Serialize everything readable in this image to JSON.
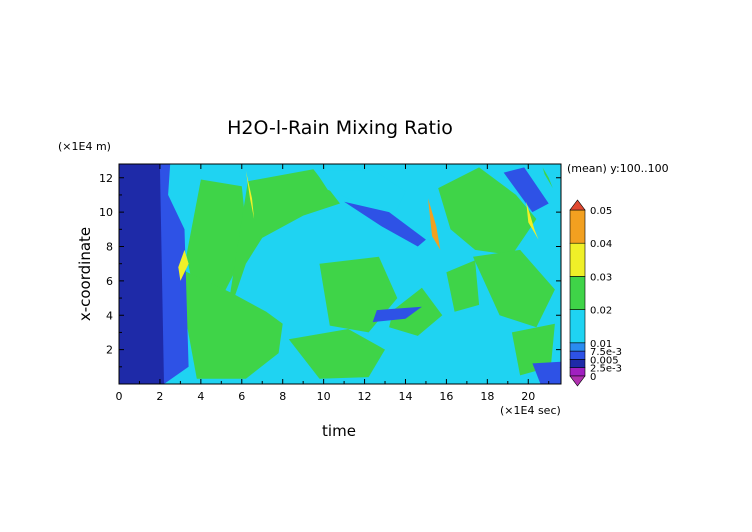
{
  "chart_data": {
    "type": "heatmap",
    "title": "H2O-l-Rain Mixing Ratio",
    "xlabel": "time",
    "ylabel": "x-coordinate",
    "x_unit": "(×1E4 sec)",
    "y_unit": "(×1E4 m)",
    "annotation": "(mean) y:100..100",
    "xlim": [
      0,
      21.6
    ],
    "ylim": [
      0,
      12.8
    ],
    "x_ticks": [
      "0",
      "2",
      "4",
      "6",
      "8",
      "10",
      "12",
      "14",
      "16",
      "18",
      "20"
    ],
    "y_ticks": [
      "2",
      "4",
      "6",
      "8",
      "10",
      "12"
    ],
    "colorbar": {
      "levels": [
        0,
        0.0025,
        0.005,
        0.0075,
        0.01,
        0.02,
        0.03,
        0.04,
        0.05
      ],
      "labels": [
        "0",
        "2.5e-3",
        "0.005",
        "7.5e-3",
        "0.01",
        "0.02",
        "0.03",
        "0.04",
        "0.05"
      ],
      "colors": [
        "#a020c0",
        "#1e2aa8",
        "#2e52e6",
        "#2a8cf0",
        "#1fd3f2",
        "#3fd448",
        "#f0f028",
        "#f2a020",
        "#f04418"
      ],
      "under_color": "#b030b0",
      "over_color": "#e04830"
    },
    "fields": {
      "background": 0.012,
      "green_regions": [
        {
          "x": [
            4.0,
            6.0,
            6.3,
            5.0,
            3.8,
            3.3,
            4.0
          ],
          "y": [
            11.9,
            11.5,
            8.0,
            5.0,
            4.5,
            7.5,
            11.9
          ],
          "value": 0.022
        },
        {
          "x": [
            6.3,
            9.5,
            10.8,
            9.0,
            7.0,
            6.2,
            5.2,
            6.3
          ],
          "y": [
            11.8,
            12.5,
            10.5,
            9.8,
            8.5,
            7.0,
            3.5,
            11.8
          ],
          "value": 0.02
        },
        {
          "x": [
            2.8,
            5.5,
            7.2,
            8.0,
            7.8,
            6.2,
            3.8,
            2.8
          ],
          "y": [
            6.8,
            5.3,
            4.2,
            3.5,
            1.8,
            0.3,
            0.3,
            6.8
          ],
          "value": 0.022
        },
        {
          "x": [
            9.6,
            12.5,
            14.0,
            13.5,
            11.8,
            10.2,
            9.6
          ],
          "y": [
            12.4,
            12.4,
            11.2,
            10.0,
            10.5,
            11.3,
            12.4
          ],
          "value": 0.019
        },
        {
          "x": [
            9.8,
            12.7,
            13.6,
            12.2,
            10.3,
            9.8
          ],
          "y": [
            7.0,
            7.4,
            5.0,
            3.0,
            3.4,
            7.0
          ],
          "value": 0.021
        },
        {
          "x": [
            13.4,
            14.8,
            15.8,
            14.6,
            13.2,
            13.4
          ],
          "y": [
            4.3,
            5.6,
            4.0,
            2.8,
            3.3,
            4.3
          ],
          "value": 0.02
        },
        {
          "x": [
            8.3,
            11.2,
            13.0,
            12.2,
            9.8,
            8.3
          ],
          "y": [
            2.6,
            3.2,
            2.0,
            0.4,
            0.3,
            2.6
          ],
          "value": 0.02
        },
        {
          "x": [
            15.6,
            17.6,
            19.4,
            20.4,
            19.2,
            17.4,
            16.2,
            15.6
          ],
          "y": [
            11.4,
            12.6,
            11.0,
            9.6,
            7.5,
            7.8,
            9.0,
            11.4
          ],
          "value": 0.022
        },
        {
          "x": [
            17.3,
            19.6,
            21.3,
            20.4,
            18.6,
            17.3
          ],
          "y": [
            7.4,
            7.8,
            5.5,
            3.3,
            4.0,
            7.4
          ],
          "value": 0.021
        },
        {
          "x": [
            19.2,
            21.3,
            21.1,
            19.6,
            19.2
          ],
          "y": [
            3.0,
            3.5,
            1.0,
            0.5,
            3.0
          ],
          "value": 0.02
        },
        {
          "x": [
            16.0,
            17.4,
            17.6,
            16.4,
            16.0
          ],
          "y": [
            6.5,
            7.2,
            4.6,
            4.2,
            6.5
          ],
          "value": 0.02
        }
      ],
      "dark_regions": [
        {
          "x": [
            0.0,
            2.5,
            2.4,
            3.2,
            3.4,
            2.2,
            0.0
          ],
          "y": [
            12.8,
            12.8,
            11.0,
            9.0,
            1.0,
            0.0,
            0.0
          ],
          "value": 0.006
        },
        {
          "x": [
            0.0,
            2.0,
            2.2,
            0.0
          ],
          "y": [
            12.8,
            12.8,
            0.0,
            0.0
          ],
          "value": 0.0045
        },
        {
          "x": [
            11.0,
            13.2,
            15.0,
            14.6,
            12.8,
            11.0
          ],
          "y": [
            10.6,
            10.0,
            8.4,
            8.0,
            9.2,
            10.6
          ],
          "value": 0.006
        },
        {
          "x": [
            18.8,
            19.8,
            21.0,
            20.2,
            18.8
          ],
          "y": [
            12.3,
            12.6,
            10.5,
            10.0,
            12.3
          ],
          "value": 0.006
        },
        {
          "x": [
            12.6,
            14.8,
            14.0,
            12.4,
            12.6
          ],
          "y": [
            4.3,
            4.5,
            3.8,
            3.6,
            4.3
          ],
          "value": 0.006
        },
        {
          "x": [
            20.2,
            21.6,
            21.6,
            20.6,
            20.2
          ],
          "y": [
            1.2,
            1.3,
            0.0,
            0.0,
            1.2
          ],
          "value": 0.006
        }
      ],
      "peak_ridges": [
        {
          "x": [
            6.2,
            6.4,
            6.6,
            6.5,
            6.2
          ],
          "y": [
            12.4,
            10.8,
            9.6,
            10.8,
            12.4
          ],
          "value": 0.032
        },
        {
          "x": [
            3.0,
            3.4,
            3.2,
            2.9
          ],
          "y": [
            6.0,
            7.0,
            7.8,
            6.8
          ],
          "value": 0.03
        },
        {
          "x": [
            15.1,
            15.5,
            15.7,
            15.3,
            15.1
          ],
          "y": [
            10.8,
            9.2,
            7.8,
            8.6,
            10.8
          ],
          "value": 0.042
        },
        {
          "x": [
            19.9,
            20.3,
            20.5,
            20.0,
            19.9
          ],
          "y": [
            10.6,
            9.0,
            8.4,
            9.4,
            10.6
          ],
          "value": 0.035
        },
        {
          "x": [
            20.7,
            21.0,
            21.2,
            20.8
          ],
          "y": [
            12.6,
            12.0,
            11.4,
            12.2
          ],
          "value": 0.028
        }
      ]
    }
  }
}
